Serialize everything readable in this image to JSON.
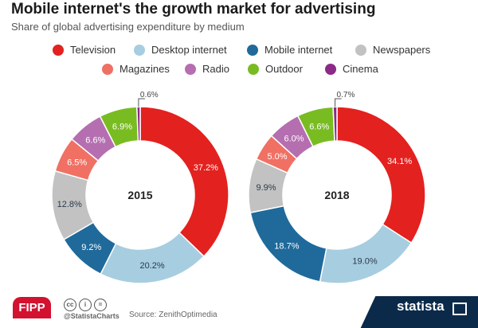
{
  "header": {
    "title": "Mobile internet's the growth market for advertising",
    "subtitle": "Share of global advertising expenditure by medium"
  },
  "legend": [
    {
      "label": "Television",
      "color": "#e3211f"
    },
    {
      "label": "Desktop internet",
      "color": "#a7cde0"
    },
    {
      "label": "Mobile internet",
      "color": "#1f6a9b"
    },
    {
      "label": "Newspapers",
      "color": "#c2c2c2"
    },
    {
      "label": "Magazines",
      "color": "#f07064"
    },
    {
      "label": "Radio",
      "color": "#b56fb0"
    },
    {
      "label": "Outdoor",
      "color": "#79bc22"
    },
    {
      "label": "Cinema",
      "color": "#8b2a87"
    }
  ],
  "chart_data": [
    {
      "type": "pie",
      "center_label": "2015",
      "slices": [
        {
          "label": "Television",
          "value": 37.2,
          "value_label": "37.2%"
        },
        {
          "label": "Desktop internet",
          "value": 20.2,
          "value_label": "20.2%"
        },
        {
          "label": "Mobile internet",
          "value": 9.2,
          "value_label": "9.2%"
        },
        {
          "label": "Newspapers",
          "value": 12.8,
          "value_label": "12.8%"
        },
        {
          "label": "Magazines",
          "value": 6.5,
          "value_label": "6.5%"
        },
        {
          "label": "Radio",
          "value": 6.6,
          "value_label": "6.6%"
        },
        {
          "label": "Outdoor",
          "value": 6.9,
          "value_label": "6.9%"
        },
        {
          "label": "Cinema",
          "value": 0.6,
          "value_label": "0.6%"
        }
      ]
    },
    {
      "type": "pie",
      "center_label": "2018",
      "slices": [
        {
          "label": "Television",
          "value": 34.1,
          "value_label": "34.1%"
        },
        {
          "label": "Desktop internet",
          "value": 19.0,
          "value_label": "19.0%"
        },
        {
          "label": "Mobile internet",
          "value": 18.7,
          "value_label": "18.7%"
        },
        {
          "label": "Newspapers",
          "value": 9.9,
          "value_label": "9.9%"
        },
        {
          "label": "Magazines",
          "value": 5.0,
          "value_label": "5.0%"
        },
        {
          "label": "Radio",
          "value": 6.0,
          "value_label": "6.0%"
        },
        {
          "label": "Outdoor",
          "value": 6.6,
          "value_label": "6.6%"
        },
        {
          "label": "Cinema",
          "value": 0.7,
          "value_label": "0.7%"
        }
      ]
    }
  ],
  "footer": {
    "logo": "FIPP",
    "handle": "@StatistaCharts",
    "source": "Source: ZenithOptimedia",
    "brand": "statista"
  }
}
